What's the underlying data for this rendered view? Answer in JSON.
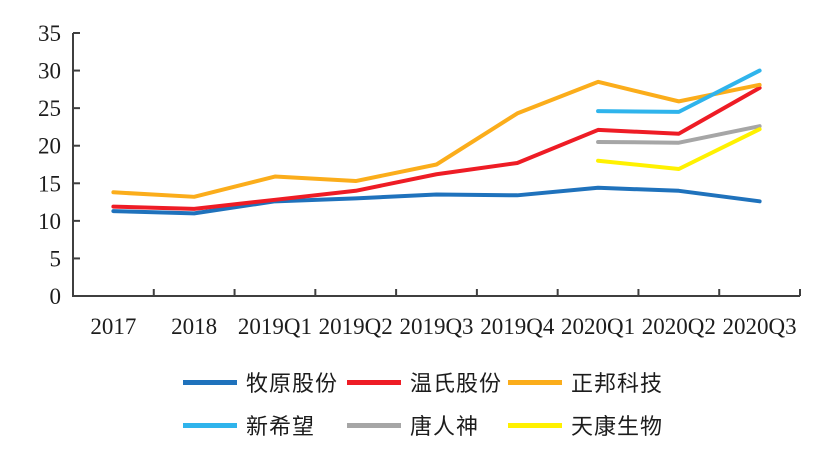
{
  "chart_data": {
    "type": "line",
    "title": "",
    "categories": [
      "2017",
      "2018",
      "2019Q1",
      "2019Q2",
      "2019Q3",
      "2019Q4",
      "2020Q1",
      "2020Q2",
      "2020Q3"
    ],
    "yticks": [
      0,
      5,
      10,
      15,
      20,
      25,
      30,
      35
    ],
    "ylim": [
      0,
      35
    ],
    "grid": false,
    "legend_position": "bottom",
    "axis_color": "#3f3f3f",
    "series": [
      {
        "name": "牧原股份",
        "color": "#1F72BC",
        "values": [
          11.3,
          11.0,
          12.6,
          13.0,
          13.5,
          13.4,
          14.4,
          14.0,
          12.6
        ]
      },
      {
        "name": "温氏股份",
        "color": "#EE1C25",
        "values": [
          11.9,
          11.6,
          12.8,
          14.0,
          16.2,
          17.7,
          22.1,
          21.6,
          27.7
        ]
      },
      {
        "name": "正邦科技",
        "color": "#FBAD1B",
        "values": [
          13.8,
          13.2,
          15.9,
          15.3,
          17.5,
          24.3,
          28.5,
          25.9,
          28.1
        ]
      },
      {
        "name": "新希望",
        "color": "#2FB4EC",
        "values": [
          null,
          null,
          null,
          null,
          null,
          null,
          24.6,
          24.5,
          30.0
        ]
      },
      {
        "name": "唐人神",
        "color": "#A6A6A6",
        "values": [
          null,
          null,
          null,
          null,
          null,
          null,
          20.5,
          20.4,
          22.6
        ]
      },
      {
        "name": "天康生物",
        "color": "#FFF100",
        "values": [
          null,
          null,
          null,
          null,
          null,
          null,
          18.0,
          16.9,
          22.2
        ]
      }
    ]
  }
}
